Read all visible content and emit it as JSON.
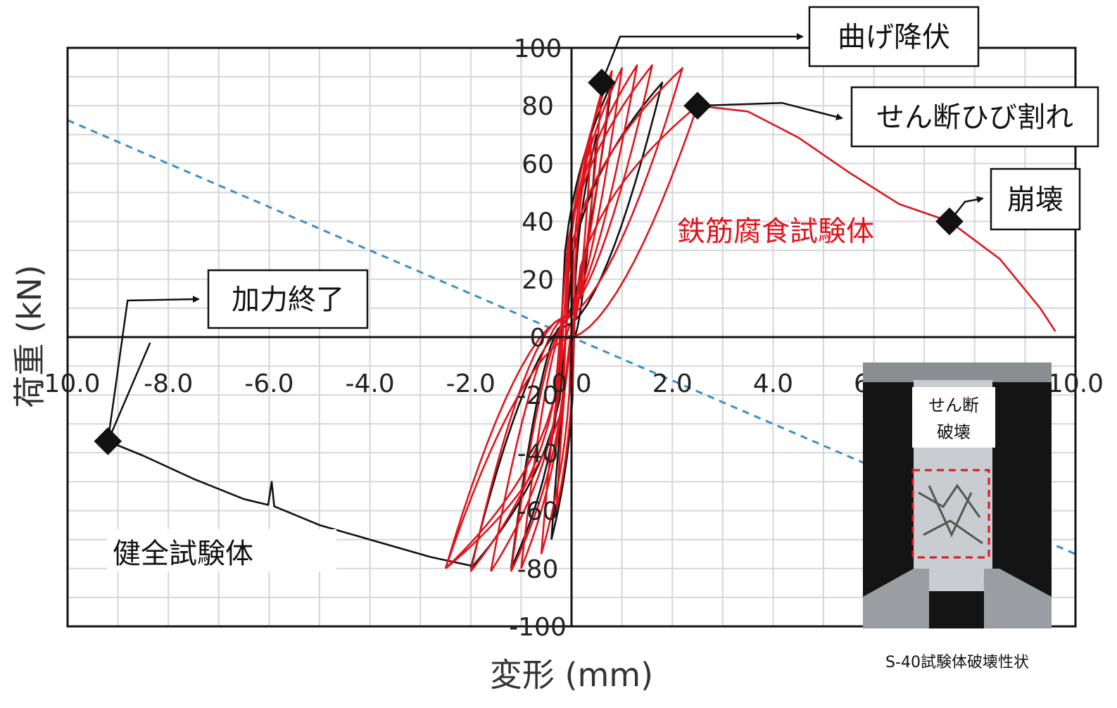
{
  "chart_data": {
    "type": "line",
    "title": "",
    "xlabel": "変形 (mm)",
    "ylabel": "荷重 (kN)",
    "xlim": [
      -10,
      10
    ],
    "ylim": [
      -100,
      100
    ],
    "grid": true,
    "x_ticks": [
      {
        "value": -10,
        "label": "-10.0"
      },
      {
        "value": -8,
        "label": "-8.0"
      },
      {
        "value": -6,
        "label": "-6.0"
      },
      {
        "value": -4,
        "label": "-4.0"
      },
      {
        "value": -2,
        "label": "-2.0"
      },
      {
        "value": 0,
        "label": "0.0"
      },
      {
        "value": 2,
        "label": "2.0"
      },
      {
        "value": 4,
        "label": "4.0"
      },
      {
        "value": 6,
        "label": "6.0"
      },
      {
        "value": 10,
        "label": "10.0"
      }
    ],
    "y_ticks": [
      {
        "value": 100,
        "label": "100"
      },
      {
        "value": 80,
        "label": "80"
      },
      {
        "value": 60,
        "label": "60"
      },
      {
        "value": 40,
        "label": "40"
      },
      {
        "value": 20,
        "label": "20"
      },
      {
        "value": 0,
        "label": "0"
      },
      {
        "value": -20,
        "label": "-20"
      },
      {
        "value": -40,
        "label": "-40"
      },
      {
        "value": -60,
        "label": "-60"
      },
      {
        "value": -80,
        "label": "-80"
      },
      {
        "value": -100,
        "label": "-100"
      }
    ],
    "series": [
      {
        "name": "健全試験体",
        "color": "#111111",
        "style": "hysteresis",
        "cycles": [
          {
            "umax": 0.5,
            "pmax": 70,
            "umin": -0.4,
            "pmin": -70
          },
          {
            "umax": 0.8,
            "pmax": 88,
            "umin": -1.2,
            "pmin": -80
          },
          {
            "umax": 1.8,
            "pmax": 88,
            "umin": -2.0,
            "pmin": -80
          }
        ],
        "tail": [
          [
            -2.0,
            -79
          ],
          [
            -2.8,
            -76
          ],
          [
            -4.0,
            -70
          ],
          [
            -5.0,
            -65
          ],
          [
            -5.9,
            -58.5
          ],
          [
            -5.95,
            -50
          ],
          [
            -6.02,
            -58
          ],
          [
            -6.5,
            -56
          ],
          [
            -7.5,
            -49
          ],
          [
            -8.5,
            -41
          ],
          [
            -9.2,
            -36
          ]
        ]
      },
      {
        "name": "鉄筋腐食試験体",
        "color": "#e0141c",
        "style": "hysteresis",
        "cycles": [
          {
            "umax": 0.4,
            "pmax": 70,
            "umin": -0.3,
            "pmin": -60
          },
          {
            "umax": 0.6,
            "pmax": 85,
            "umin": -0.6,
            "pmin": -75
          },
          {
            "umax": 0.8,
            "pmax": 92,
            "umin": -1.0,
            "pmin": -80
          },
          {
            "umax": 1.0,
            "pmax": 93,
            "umin": -1.2,
            "pmin": -81
          },
          {
            "umax": 1.3,
            "pmax": 94,
            "umin": -1.6,
            "pmin": -81
          },
          {
            "umax": 1.6,
            "pmax": 94,
            "umin": -2.0,
            "pmin": -81
          },
          {
            "umax": 2.2,
            "pmax": 93,
            "umin": -2.5,
            "pmin": -80
          },
          {
            "umax": 2.5,
            "pmax": 80,
            "umin": -2.5,
            "pmin": -80
          }
        ],
        "tail": [
          [
            2.5,
            80
          ],
          [
            3.5,
            78
          ],
          [
            4.5,
            69
          ],
          [
            5.5,
            57
          ],
          [
            6.5,
            46
          ],
          [
            7.5,
            40
          ],
          [
            8.5,
            27
          ],
          [
            9.3,
            10
          ],
          [
            9.6,
            2
          ]
        ]
      }
    ],
    "reference_line": {
      "style": "dashed",
      "color": "#3a8fc8",
      "points": [
        [
          -10,
          75
        ],
        [
          10,
          -75
        ]
      ]
    },
    "events": [
      {
        "label": "曲げ降伏",
        "x": 0.6,
        "y": 88
      },
      {
        "label": "せん断ひび割れ",
        "x": 2.5,
        "y": 80
      },
      {
        "label": "崩壊",
        "x": 7.5,
        "y": 40
      },
      {
        "label": "加力終了",
        "x": -9.2,
        "y": -36
      }
    ],
    "series_labels": [
      {
        "text": "鉄筋腐食試験体",
        "color": "#e0141c"
      },
      {
        "text": "健全試験体",
        "color": "#111111"
      }
    ]
  },
  "photo": {
    "label": "せん断\n破壊",
    "label_lines": [
      "せん断",
      "破壊"
    ],
    "caption": "S-40試験体破壊性状"
  }
}
